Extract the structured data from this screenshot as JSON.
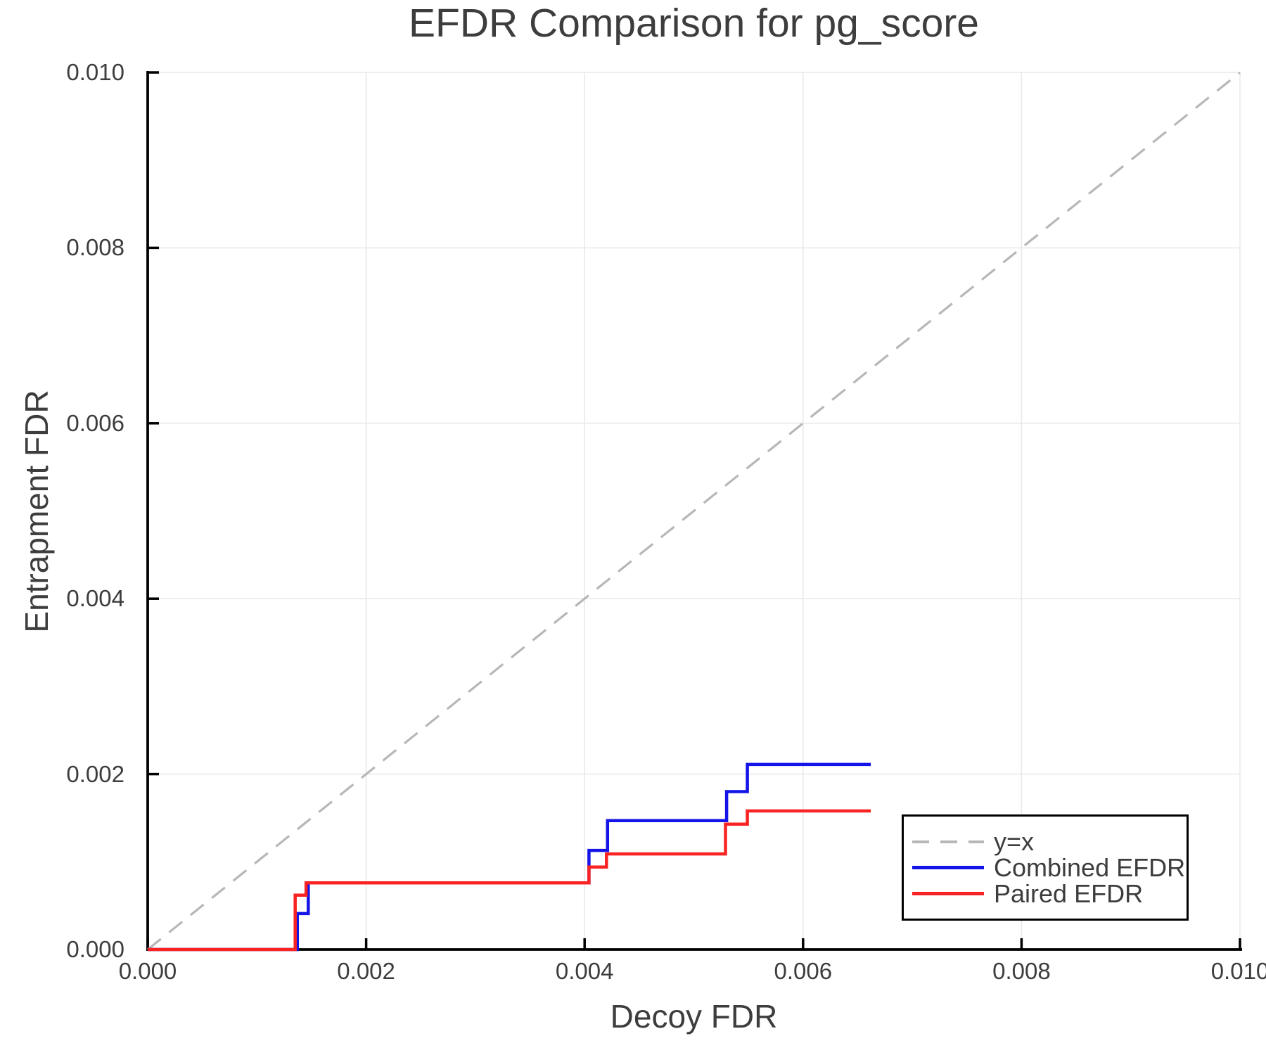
{
  "chart_data": {
    "type": "line",
    "title": "EFDR Comparison for pg_score",
    "xlabel": "Decoy FDR",
    "ylabel": "Entrapment FDR",
    "xlim": [
      0.0,
      0.01
    ],
    "ylim": [
      0.0,
      0.01
    ],
    "grid": true,
    "x_ticks": {
      "values": [
        0.0,
        0.002,
        0.004,
        0.006,
        0.008,
        0.01
      ],
      "labels": [
        "0.000",
        "0.002",
        "0.004",
        "0.006",
        "0.008",
        "0.010"
      ]
    },
    "y_ticks": {
      "values": [
        0.0,
        0.002,
        0.004,
        0.006,
        0.008,
        0.01
      ],
      "labels": [
        "0.000",
        "0.002",
        "0.004",
        "0.006",
        "0.008",
        "0.010"
      ]
    },
    "reference_line": {
      "name": "y=x",
      "style": "dashed",
      "color": "#b7b7b7",
      "points": [
        [
          0.0,
          0.0
        ],
        [
          0.01,
          0.01
        ]
      ]
    },
    "series": [
      {
        "name": "Combined EFDR",
        "color": "#1414e8",
        "style": "solid",
        "points": [
          [
            0.0,
            0.0
          ],
          [
            0.00137,
            0.0
          ],
          [
            0.00137,
            0.00041
          ],
          [
            0.00147,
            0.00041
          ],
          [
            0.00147,
            0.00076
          ],
          [
            0.00404,
            0.00076
          ],
          [
            0.00404,
            0.00113
          ],
          [
            0.00421,
            0.00113
          ],
          [
            0.00421,
            0.00147
          ],
          [
            0.0053,
            0.00147
          ],
          [
            0.0053,
            0.0018
          ],
          [
            0.00549,
            0.0018
          ],
          [
            0.00549,
            0.00211
          ],
          [
            0.00662,
            0.00211
          ]
        ]
      },
      {
        "name": "Paired EFDR",
        "color": "#fa2323",
        "style": "solid",
        "points": [
          [
            0.0,
            0.0
          ],
          [
            0.00135,
            0.0
          ],
          [
            0.00135,
            0.00062
          ],
          [
            0.00145,
            0.00062
          ],
          [
            0.00145,
            0.00076
          ],
          [
            0.00404,
            0.00076
          ],
          [
            0.00404,
            0.00094
          ],
          [
            0.0042,
            0.00094
          ],
          [
            0.0042,
            0.00109
          ],
          [
            0.00529,
            0.00109
          ],
          [
            0.00529,
            0.00143
          ],
          [
            0.00549,
            0.00143
          ],
          [
            0.00549,
            0.00158
          ],
          [
            0.00662,
            0.00158
          ]
        ]
      }
    ],
    "legend": {
      "position": "lower right",
      "entries": [
        {
          "label": "y=x",
          "color": "#b7b7b7",
          "style": "dashed"
        },
        {
          "label": "Combined EFDR",
          "color": "#1414e8",
          "style": "solid"
        },
        {
          "label": "Paired EFDR",
          "color": "#fa2323",
          "style": "solid"
        }
      ]
    },
    "colors": {
      "grid": "#e9e9e9",
      "axis": "#000000",
      "text": "#3d3d3d"
    }
  }
}
